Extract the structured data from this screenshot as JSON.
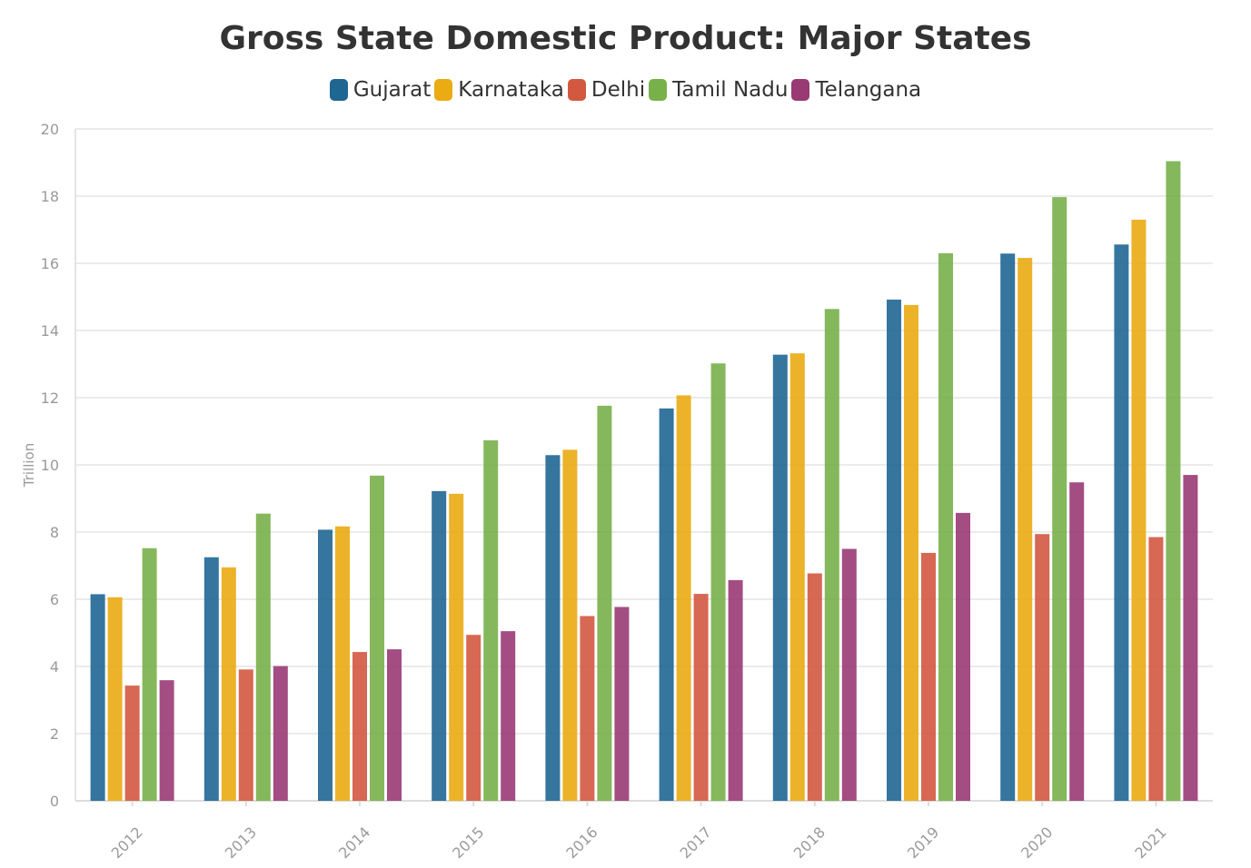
{
  "chart_data": {
    "type": "bar",
    "title": "Gross State Domestic Product: Major States",
    "xlabel": "",
    "ylabel": "Trillion",
    "ylim": [
      0,
      20
    ],
    "yticks": [
      0,
      2,
      4,
      6,
      8,
      10,
      12,
      14,
      16,
      18,
      20
    ],
    "grid": true,
    "legend_position": "top-center",
    "categories": [
      "2012",
      "2013",
      "2014",
      "2015",
      "2016",
      "2017",
      "2018",
      "2019",
      "2020",
      "2021"
    ],
    "series": [
      {
        "name": "Gujarat",
        "color": "#1f6693",
        "values": [
          6.15,
          7.25,
          8.07,
          9.22,
          10.29,
          11.68,
          13.28,
          14.92,
          16.29,
          16.56
        ]
      },
      {
        "name": "Karnataka",
        "color": "#eaab13",
        "values": [
          6.06,
          6.95,
          8.17,
          9.14,
          10.45,
          12.07,
          13.32,
          14.76,
          16.16,
          17.3
        ]
      },
      {
        "name": "Delhi",
        "color": "#d35840",
        "values": [
          3.43,
          3.91,
          4.43,
          4.94,
          5.5,
          6.16,
          6.77,
          7.38,
          7.94,
          7.85
        ]
      },
      {
        "name": "Tamil Nadu",
        "color": "#78b04a",
        "values": [
          7.52,
          8.55,
          9.68,
          10.73,
          11.76,
          13.02,
          14.64,
          16.3,
          17.97,
          19.04
        ]
      },
      {
        "name": "Telangana",
        "color": "#993a75",
        "values": [
          3.59,
          4.01,
          4.51,
          5.05,
          5.77,
          6.57,
          7.5,
          8.57,
          9.48,
          9.7
        ]
      }
    ]
  }
}
